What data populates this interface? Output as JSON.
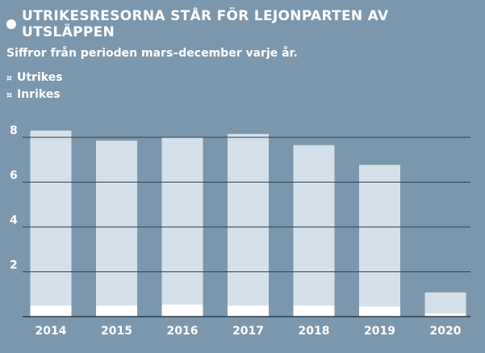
{
  "header": {
    "title": "UTRIKESRESORNA STÅR FÖR LEJONPARTEN AV UTSLÄPPEN",
    "subtitle": "Siffror från perioden mars–december varje år."
  },
  "legend": {
    "items": [
      {
        "symbol": "¤",
        "label": "Utrikes"
      },
      {
        "symbol": "¤",
        "label": "Inrikes"
      }
    ]
  },
  "colors": {
    "background": "#7b97ad",
    "utrikes": "#d5e1ea",
    "inrikes": "#ffffff",
    "gridline": "#2f3f4c",
    "text": "#ffffff"
  },
  "chart_data": {
    "type": "bar",
    "stacked": true,
    "categories": [
      "2014",
      "2015",
      "2016",
      "2017",
      "2018",
      "2019",
      "2020"
    ],
    "series": [
      {
        "name": "Inrikes",
        "values": [
          0.5,
          0.5,
          0.55,
          0.5,
          0.5,
          0.45,
          0.15
        ]
      },
      {
        "name": "Utrikes",
        "values": [
          7.8,
          7.35,
          7.45,
          7.65,
          7.15,
          6.32,
          0.93
        ]
      }
    ],
    "title": "UTRIKESRESORNA STÅR FÖR LEJONPARTEN AV UTSLÄPPEN",
    "subtitle": "Siffror från perioden mars–december varje år.",
    "xlabel": "",
    "ylabel": "",
    "ylim": [
      0,
      8
    ],
    "yticks": [
      2,
      4,
      6,
      8
    ],
    "grid": true,
    "legend_position": "top-left"
  }
}
